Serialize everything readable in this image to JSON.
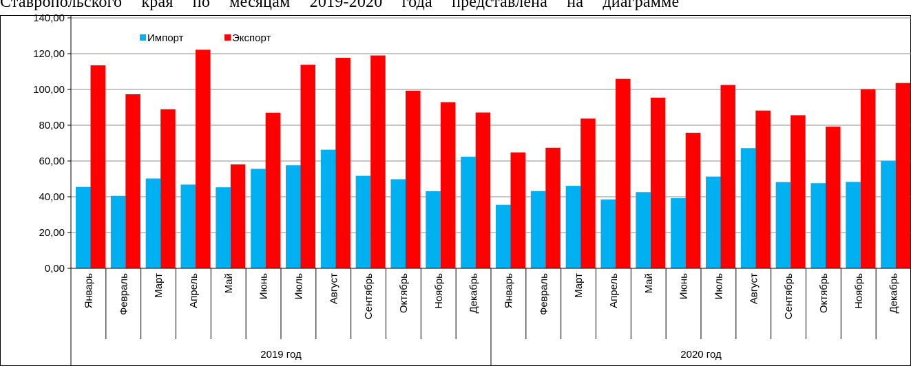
{
  "page_text_above": "Ставропольского края по месяцам 2019-2020 года представлена на диаграмме",
  "chart_data": {
    "type": "bar",
    "title": "",
    "xlabel": "",
    "ylabel": "",
    "ylim": [
      0,
      140
    ],
    "yticks": [
      "0,00",
      "20,00",
      "40,00",
      "60,00",
      "80,00",
      "100,00",
      "120,00",
      "140,00"
    ],
    "grid": true,
    "legend_position": "top-left",
    "groups": [
      {
        "label": "2019 год",
        "span": 12
      },
      {
        "label": "2020 год",
        "span": 12
      }
    ],
    "categories": [
      "Январь",
      "Февраль",
      "Март",
      "Апрель",
      "Май",
      "Июнь",
      "Июль",
      "Август",
      "Сентябрь",
      "Октябрь",
      "Ноябрь",
      "Декабрь",
      "Январь",
      "Февраль",
      "Март",
      "Апрель",
      "Май",
      "Июнь",
      "Июль",
      "Август",
      "Сентябрь",
      "Октябрь",
      "Ноябрь",
      "Декабрь"
    ],
    "series": [
      {
        "name": "Импорт",
        "color": "#00B0F0",
        "values": [
          45.5,
          40.5,
          50.2,
          46.8,
          45.3,
          55.6,
          57.6,
          66.3,
          51.7,
          49.8,
          43.1,
          62.4,
          35.5,
          43.2,
          46.1,
          38.5,
          42.6,
          39.2,
          51.3,
          67.2,
          48.2,
          47.6,
          48.3,
          60.2
        ]
      },
      {
        "name": "Экспорт",
        "color": "#FF0000",
        "values": [
          113.5,
          97.3,
          88.9,
          122.2,
          58.1,
          87.0,
          113.8,
          117.7,
          119.0,
          99.3,
          92.9,
          87.1,
          64.8,
          67.4,
          83.7,
          105.9,
          95.4,
          75.8,
          102.5,
          88.2,
          85.6,
          79.2,
          100.2,
          103.6
        ]
      }
    ]
  }
}
